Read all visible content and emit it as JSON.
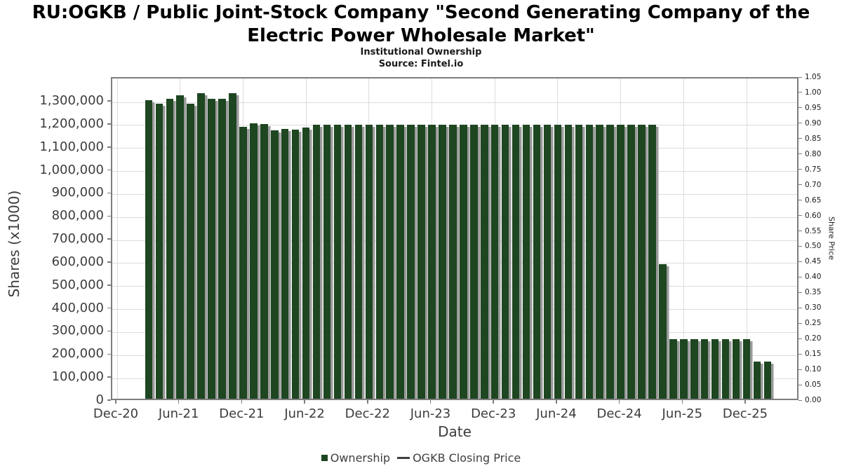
{
  "chart_data": {
    "type": "bar",
    "title": "RU:OGKB / Public Joint-Stock Company \"Second Generating Company of the Electric Power Wholesale Market\"",
    "subtitle": "Institutional Ownership",
    "source": "Source: Fintel.io",
    "xlabel": "Date",
    "ylabel_left": "Shares (x1000)",
    "ylabel_right": "Share Price",
    "grid": true,
    "legend_position": "bottom",
    "bar_color": "#1d4621",
    "bar_shadow_color": "#9a9a9a",
    "ylim_left": [
      0,
      1404000
    ],
    "ylim_right": [
      0,
      1.05
    ],
    "x_ticks": [
      "Dec-20",
      "Jun-21",
      "Dec-21",
      "Jun-22",
      "Dec-22",
      "Jun-23",
      "Dec-23",
      "Jun-24",
      "Dec-24",
      "Jun-25",
      "Dec-25"
    ],
    "y_left_ticks": {
      "values": [
        0,
        100000,
        200000,
        300000,
        400000,
        500000,
        600000,
        700000,
        800000,
        900000,
        1000000,
        1100000,
        1200000,
        1300000
      ],
      "labels": [
        "0",
        "100,000",
        "200,000",
        "300,000",
        "400,000",
        "500,000",
        "600,000",
        "700,000",
        "800,000",
        "900,000",
        "1,000,000",
        "1,100,000",
        "1,200,000",
        "1,300,000"
      ]
    },
    "y_right_ticks": {
      "values": [
        0.0,
        0.05,
        0.1,
        0.15,
        0.2,
        0.25,
        0.3,
        0.35,
        0.4,
        0.45,
        0.5,
        0.55,
        0.6,
        0.65,
        0.7,
        0.75,
        0.8,
        0.85,
        0.9,
        0.95,
        1.0,
        1.05
      ],
      "labels": [
        "0.00",
        "0.05",
        "0.10",
        "0.15",
        "0.20",
        "0.25",
        "0.30",
        "0.35",
        "0.40",
        "0.45",
        "0.50",
        "0.55",
        "0.60",
        "0.65",
        "0.70",
        "0.75",
        "0.80",
        "0.85",
        "0.90",
        "0.95",
        "1.00",
        "1.05"
      ]
    },
    "legend": [
      {
        "label": "Ownership",
        "swatch": "square",
        "color": "#1d4621"
      },
      {
        "label": "OGKB Closing Price",
        "swatch": "line",
        "color": "#3f3f3f"
      }
    ],
    "series": [
      {
        "name": "Ownership",
        "type": "bar",
        "units": "shares (x1000)",
        "points": [
          {
            "date": "Mar-21",
            "value": 1310000
          },
          {
            "date": "Apr-21",
            "value": 1295000
          },
          {
            "date": "May-21",
            "value": 1315000
          },
          {
            "date": "Jun-21",
            "value": 1330000
          },
          {
            "date": "Jul-21",
            "value": 1295000
          },
          {
            "date": "Aug-21",
            "value": 1340000
          },
          {
            "date": "Sep-21",
            "value": 1317000
          },
          {
            "date": "Oct-21",
            "value": 1317000
          },
          {
            "date": "Nov-21",
            "value": 1340000
          },
          {
            "date": "Dec-21",
            "value": 1194000
          },
          {
            "date": "Jan-22",
            "value": 1209000
          },
          {
            "date": "Feb-22",
            "value": 1206000
          },
          {
            "date": "Mar-22",
            "value": 1178000
          },
          {
            "date": "Apr-22",
            "value": 1185000
          },
          {
            "date": "May-22",
            "value": 1181000
          },
          {
            "date": "Jun-22",
            "value": 1191000
          },
          {
            "date": "Jul-22",
            "value": 1203000
          },
          {
            "date": "Aug-22",
            "value": 1203000
          },
          {
            "date": "Sep-22",
            "value": 1203000
          },
          {
            "date": "Oct-22",
            "value": 1203000
          },
          {
            "date": "Nov-22",
            "value": 1203000
          },
          {
            "date": "Dec-22",
            "value": 1203000
          },
          {
            "date": "Jan-23",
            "value": 1203000
          },
          {
            "date": "Feb-23",
            "value": 1203000
          },
          {
            "date": "Mar-23",
            "value": 1203000
          },
          {
            "date": "Apr-23",
            "value": 1203000
          },
          {
            "date": "May-23",
            "value": 1203000
          },
          {
            "date": "Jun-23",
            "value": 1203000
          },
          {
            "date": "Jul-23",
            "value": 1203000
          },
          {
            "date": "Aug-23",
            "value": 1203000
          },
          {
            "date": "Sep-23",
            "value": 1203000
          },
          {
            "date": "Oct-23",
            "value": 1203000
          },
          {
            "date": "Nov-23",
            "value": 1203000
          },
          {
            "date": "Dec-23",
            "value": 1203000
          },
          {
            "date": "Jan-24",
            "value": 1203000
          },
          {
            "date": "Feb-24",
            "value": 1203000
          },
          {
            "date": "Mar-24",
            "value": 1203000
          },
          {
            "date": "Apr-24",
            "value": 1203000
          },
          {
            "date": "May-24",
            "value": 1203000
          },
          {
            "date": "Jun-24",
            "value": 1203000
          },
          {
            "date": "Jul-24",
            "value": 1203000
          },
          {
            "date": "Aug-24",
            "value": 1203000
          },
          {
            "date": "Sep-24",
            "value": 1203000
          },
          {
            "date": "Oct-24",
            "value": 1203000
          },
          {
            "date": "Nov-24",
            "value": 1203000
          },
          {
            "date": "Dec-24",
            "value": 1203000
          },
          {
            "date": "Jan-25",
            "value": 1203000
          },
          {
            "date": "Feb-25",
            "value": 1203000
          },
          {
            "date": "Mar-25",
            "value": 1203000
          },
          {
            "date": "Apr-25",
            "value": 597000
          },
          {
            "date": "May-25",
            "value": 271000
          },
          {
            "date": "Jun-25",
            "value": 271000
          },
          {
            "date": "Jul-25",
            "value": 271000
          },
          {
            "date": "Aug-25",
            "value": 271000
          },
          {
            "date": "Sep-25",
            "value": 271000
          },
          {
            "date": "Oct-25",
            "value": 271000
          },
          {
            "date": "Nov-25",
            "value": 271000
          },
          {
            "date": "Dec-25",
            "value": 271000
          },
          {
            "date": "Jan-26",
            "value": 174000
          },
          {
            "date": "Feb-26",
            "value": 174000
          }
        ]
      },
      {
        "name": "OGKB Closing Price",
        "type": "line",
        "visible_in_plot": false,
        "points": []
      }
    ]
  }
}
